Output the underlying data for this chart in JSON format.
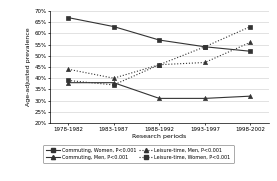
{
  "x_labels": [
    "1978-1982",
    "1983-1987",
    "1988-1992",
    "1993-1997",
    "1998-2002"
  ],
  "x_vals": [
    0,
    1,
    2,
    3,
    4
  ],
  "commuting_women": [
    67,
    63,
    57,
    54,
    52
  ],
  "commuting_men": [
    38,
    38,
    31,
    31,
    32
  ],
  "leisure_men": [
    44,
    40,
    46,
    47,
    56
  ],
  "leisure_women": [
    39,
    37,
    46,
    54,
    63
  ],
  "ylim": [
    20,
    70
  ],
  "yticks": [
    20,
    25,
    30,
    35,
    40,
    45,
    50,
    55,
    60,
    65,
    70
  ],
  "ylabel": "Age-adjusted prevalence",
  "xlabel": "Research periods",
  "bg_color": "#ffffff",
  "line_color": "#333333",
  "legend_entries": [
    "Commuting, Women, P<0.001",
    "Commuting, Men, P<0.001",
    "Leisure-time, Men, P<0.001",
    "Leisure-time, Women, P<0.001"
  ]
}
